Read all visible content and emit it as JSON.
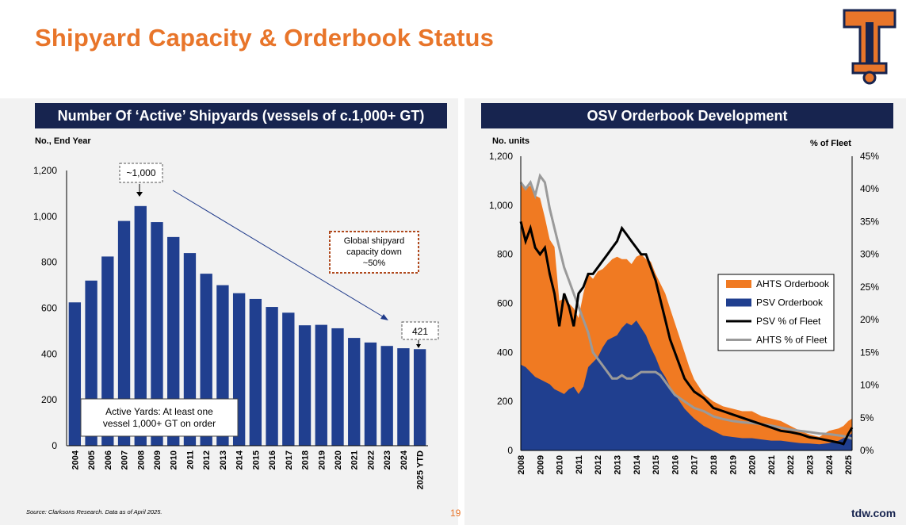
{
  "title": "Shipyard Capacity & Orderbook Status",
  "colors": {
    "accent": "#e8752a",
    "navy": "#1f3a8a",
    "header": "#17244f",
    "ahts": "#f07a22",
    "psv": "#203f8f"
  },
  "left": {
    "header": "Number Of ‘Active’ Shipyards (vessels of c.1,000+ GT)",
    "unit_label": "No., End Year",
    "peak_label": "~1,000",
    "last_label": "421",
    "annotation": [
      "Global shipyard",
      "capacity down",
      "~50%"
    ],
    "legend_box": [
      "Active Yards: At least one",
      "vessel 1,000+ GT on order"
    ]
  },
  "right": {
    "header": "OSV Orderbook Development",
    "left_unit": "No. units",
    "right_unit": "% of Fleet"
  },
  "chart_data": [
    {
      "type": "bar",
      "categories": [
        "2004",
        "2005",
        "2006",
        "2007",
        "2008",
        "2009",
        "2010",
        "2011",
        "2012",
        "2013",
        "2014",
        "2015",
        "2016",
        "2017",
        "2018",
        "2019",
        "2020",
        "2021",
        "2022",
        "2023",
        "2024",
        "2025 YTD"
      ],
      "values": [
        625,
        720,
        825,
        980,
        1045,
        975,
        910,
        840,
        750,
        700,
        665,
        640,
        605,
        580,
        525,
        527,
        512,
        470,
        450,
        435,
        425,
        421
      ],
      "ylabel": "No., End Year",
      "ylim": [
        0,
        1200
      ],
      "yticks": [
        0,
        200,
        400,
        600,
        800,
        1000,
        1200
      ]
    },
    {
      "type": "area",
      "x_labels": [
        "2008",
        "2009",
        "2010",
        "2011",
        "2012",
        "2013",
        "2014",
        "2015",
        "2016",
        "2017",
        "2018",
        "2019",
        "2020",
        "2021",
        "2022",
        "2023",
        "2024",
        "2025"
      ],
      "xlim": [
        2008,
        2025.2
      ],
      "ylim_left": [
        0,
        1200
      ],
      "ylim_right": [
        0,
        45
      ],
      "yticks_left": [
        0,
        200,
        400,
        600,
        800,
        1000,
        1200
      ],
      "yticks_right": [
        "0%",
        "5%",
        "10%",
        "15%",
        "20%",
        "25%",
        "30%",
        "35%",
        "40%",
        "45%"
      ],
      "legend": [
        "AHTS Orderbook",
        "PSV Orderbook",
        "PSV % of Fleet",
        "AHTS % of Fleet"
      ],
      "x": [
        2008,
        2008.25,
        2008.5,
        2008.75,
        2009,
        2009.25,
        2009.5,
        2009.75,
        2010,
        2010.25,
        2010.5,
        2010.75,
        2011,
        2011.25,
        2011.5,
        2011.75,
        2012,
        2012.25,
        2012.5,
        2012.75,
        2013,
        2013.25,
        2013.5,
        2013.75,
        2014,
        2014.25,
        2014.5,
        2014.75,
        2015,
        2015.25,
        2015.5,
        2015.75,
        2016,
        2016.25,
        2016.5,
        2016.75,
        2017,
        2017.5,
        2018,
        2018.5,
        2019,
        2019.5,
        2020,
        2020.5,
        2021,
        2021.5,
        2022,
        2022.5,
        2023,
        2023.5,
        2024,
        2024.5,
        2024.75,
        2025,
        2025.2
      ],
      "series": [
        {
          "name": "AHTS Orderbook",
          "kind": "stacked-total",
          "values": [
            1100,
            1070,
            1080,
            1040,
            1030,
            950,
            860,
            830,
            610,
            620,
            600,
            580,
            540,
            640,
            720,
            700,
            730,
            740,
            760,
            780,
            790,
            780,
            780,
            760,
            790,
            800,
            780,
            770,
            720,
            680,
            640,
            580,
            520,
            460,
            400,
            340,
            290,
            230,
            200,
            180,
            170,
            160,
            160,
            140,
            130,
            120,
            100,
            80,
            65,
            55,
            80,
            90,
            100,
            120,
            130
          ]
        },
        {
          "name": "PSV Orderbook",
          "values": [
            350,
            340,
            320,
            300,
            290,
            280,
            270,
            250,
            240,
            230,
            250,
            260,
            230,
            260,
            340,
            360,
            380,
            420,
            450,
            460,
            470,
            500,
            520,
            510,
            530,
            500,
            470,
            420,
            380,
            330,
            300,
            260,
            230,
            200,
            170,
            150,
            130,
            100,
            80,
            60,
            55,
            50,
            50,
            45,
            40,
            40,
            35,
            30,
            28,
            25,
            30,
            40,
            50,
            60,
            70
          ]
        },
        {
          "name": "PSV % of Fleet",
          "axis": "right",
          "values": [
            35,
            32,
            34,
            31,
            30,
            31,
            27,
            24,
            19,
            24,
            22,
            19,
            24,
            25,
            27,
            27,
            28,
            29,
            30,
            31,
            32,
            34,
            33,
            32,
            31,
            30,
            30,
            28,
            26,
            23,
            20,
            17,
            15,
            13,
            11,
            10,
            9,
            8,
            6.5,
            6,
            5.5,
            5,
            4.5,
            4,
            3.5,
            3,
            2.8,
            2.5,
            2,
            1.8,
            1.5,
            1.2,
            1.0,
            2.5,
            3.5
          ]
        },
        {
          "name": "AHTS % of Fleet",
          "axis": "right",
          "values": [
            41,
            40,
            41,
            39,
            42,
            41,
            37,
            34,
            31,
            28,
            26,
            24,
            22,
            20,
            18,
            15,
            14,
            13,
            12,
            11,
            11,
            11.5,
            11,
            11,
            11.5,
            12,
            12,
            12,
            12,
            11.5,
            10.5,
            9.5,
            8.5,
            8,
            7.5,
            7,
            6.5,
            6,
            5.2,
            4.8,
            4.5,
            4.3,
            4.2,
            4,
            3.8,
            3.5,
            3.2,
            3,
            2.8,
            2.6,
            2.5,
            2.3,
            2.2,
            2.0,
            1.8
          ]
        }
      ]
    }
  ],
  "footer": {
    "source": "Source: Clarksons Research. Data as of April 2025.",
    "page": "19",
    "site": "tdw.com"
  }
}
